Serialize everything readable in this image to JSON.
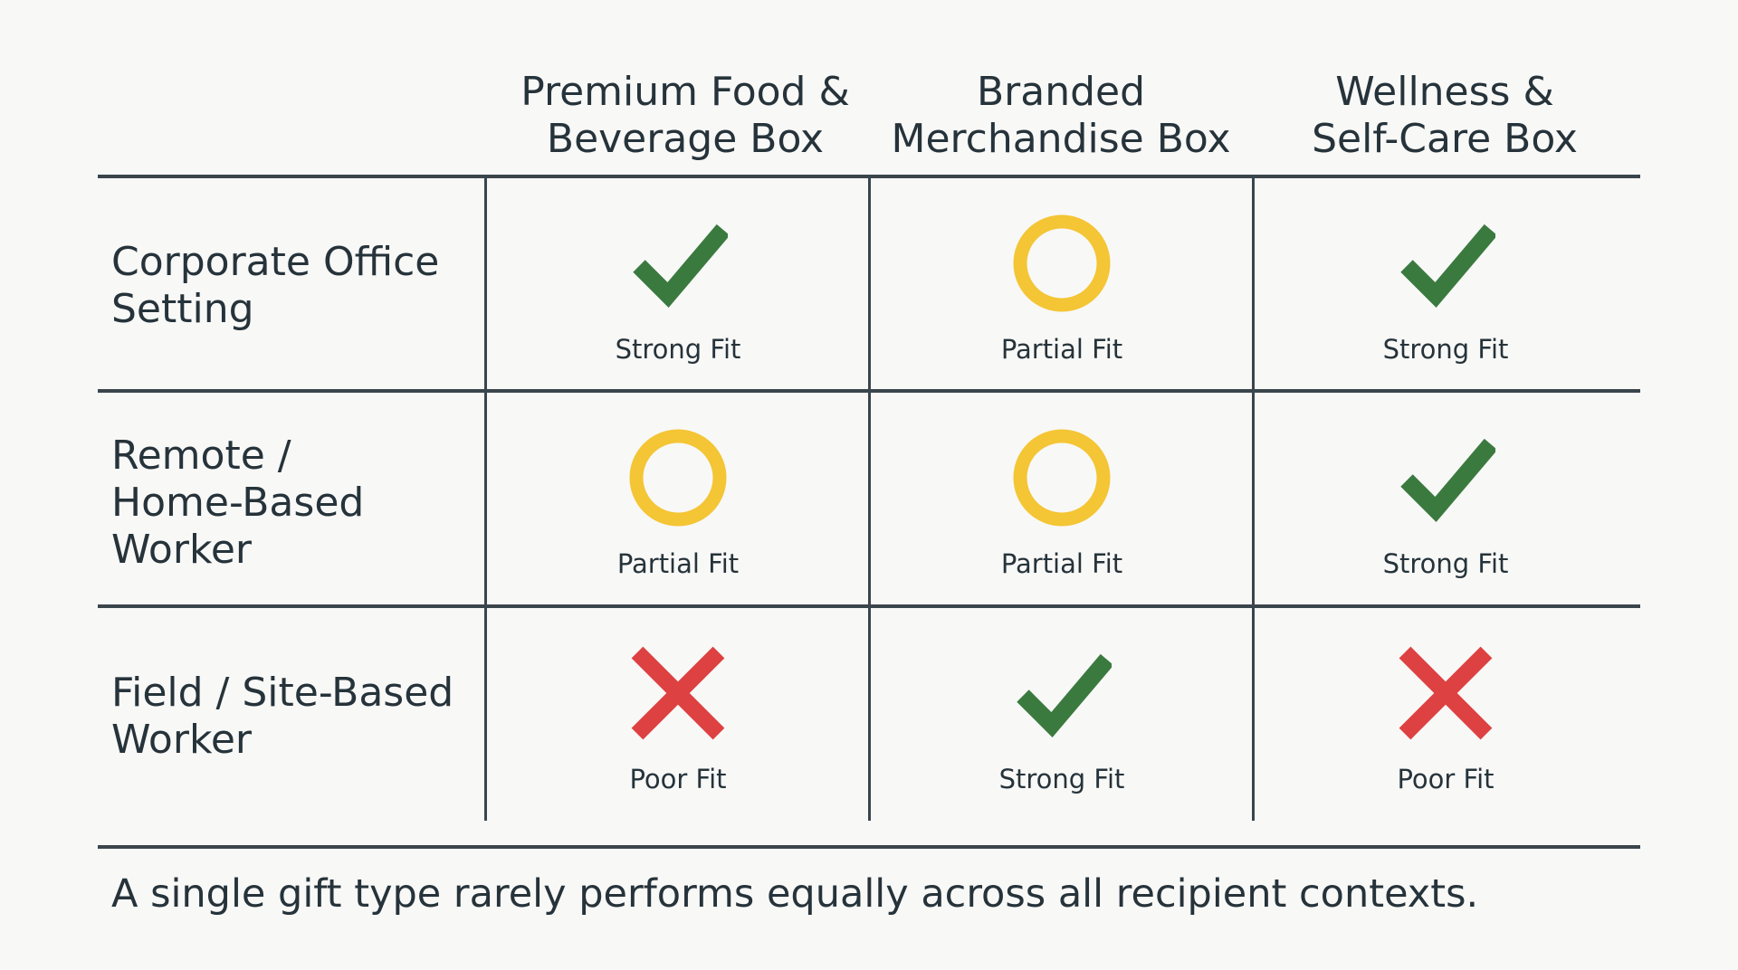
{
  "columns": [
    "Premium Food &\nBeverage Box",
    "Branded\nMerchandise Box",
    "Wellness &\nSelf-Care Box"
  ],
  "rows": [
    {
      "label": "Corporate Office\nSetting",
      "cells": [
        {
          "rating": "Strong Fit",
          "icon": "check-icon"
        },
        {
          "rating": "Partial Fit",
          "icon": "circle-icon"
        },
        {
          "rating": "Strong Fit",
          "icon": "check-icon"
        }
      ]
    },
    {
      "label": "Remote /\nHome-Based\nWorker",
      "cells": [
        {
          "rating": "Partial Fit",
          "icon": "circle-icon"
        },
        {
          "rating": "Partial Fit",
          "icon": "circle-icon"
        },
        {
          "rating": "Strong Fit",
          "icon": "check-icon"
        }
      ]
    },
    {
      "label": "Field / Site-Based\nWorker",
      "cells": [
        {
          "rating": "Poor Fit",
          "icon": "cross-icon"
        },
        {
          "rating": "Strong Fit",
          "icon": "check-icon"
        },
        {
          "rating": "Poor Fit",
          "icon": "cross-icon"
        }
      ]
    }
  ],
  "colors": {
    "strong": "#3b7a3f",
    "partial": "#f4c534",
    "poor": "#dd4141",
    "lines": "#3a454c",
    "text": "#26333a"
  },
  "footnote": "A single gift type rarely performs equally across all recipient contexts."
}
